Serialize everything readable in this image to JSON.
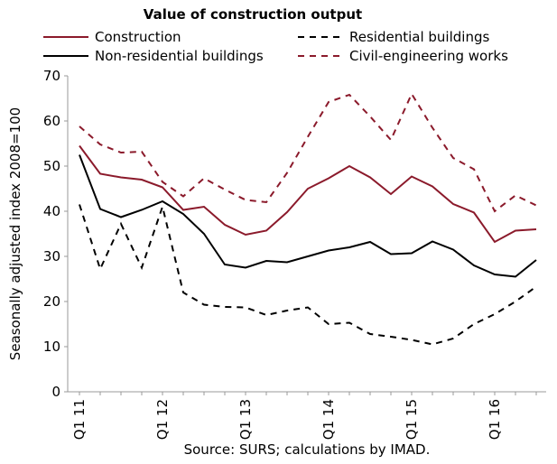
{
  "chart_data": {
    "type": "line",
    "title": "Value of construction output",
    "ylabel": "Seasonally adjusted index 2008=100",
    "source": "Source: SURS; calculations by IMAD.",
    "categories": [
      "Q1 11",
      null,
      null,
      null,
      "Q1 12",
      null,
      null,
      null,
      "Q1 13",
      null,
      null,
      null,
      "Q1 14",
      null,
      null,
      null,
      "Q1 15",
      null,
      null,
      null,
      "Q1 16",
      null,
      null
    ],
    "series": [
      {
        "name": "Construction",
        "color": "#8b1a2b",
        "dash": false,
        "values": [
          54.5,
          48.3,
          47.5,
          47,
          45.3,
          40.3,
          41,
          37,
          34.8,
          35.7,
          39.8,
          45,
          47.3,
          50,
          47.5,
          43.8,
          47.7,
          45.5,
          41.6,
          39.7,
          33.2,
          35.7,
          36
        ]
      },
      {
        "name": "Residential buildings",
        "color": "#000000",
        "dash": true,
        "values": [
          41.5,
          27.2,
          37.2,
          27.5,
          41,
          22,
          19.3,
          18.8,
          18.7,
          17,
          18,
          18.7,
          15,
          15.3,
          12.8,
          12.2,
          11.5,
          10.5,
          11.8,
          15,
          17.2,
          20,
          23.3
        ]
      },
      {
        "name": "Non-residential buildings",
        "color": "#000000",
        "dash": false,
        "values": [
          52.5,
          40.5,
          38.7,
          40.3,
          42.2,
          39.4,
          35,
          28.2,
          27.5,
          29,
          28.7,
          30,
          31.3,
          32,
          33.2,
          30.5,
          30.7,
          33.3,
          31.5,
          28,
          26,
          25.5,
          29.2
        ]
      },
      {
        "name": "Civil-engineering works",
        "color": "#8b1a2b",
        "dash": true,
        "values": [
          58.8,
          54.8,
          53,
          53.2,
          46.5,
          43.3,
          47.3,
          44.8,
          42.5,
          42,
          48.5,
          56.5,
          64.2,
          65.8,
          61,
          55.8,
          66,
          58.5,
          51.8,
          49.3,
          40,
          43.5,
          41.3
        ]
      }
    ],
    "ylim": [
      0,
      70
    ],
    "yticks": [
      0,
      10,
      20,
      30,
      40,
      50,
      60,
      70
    ]
  }
}
